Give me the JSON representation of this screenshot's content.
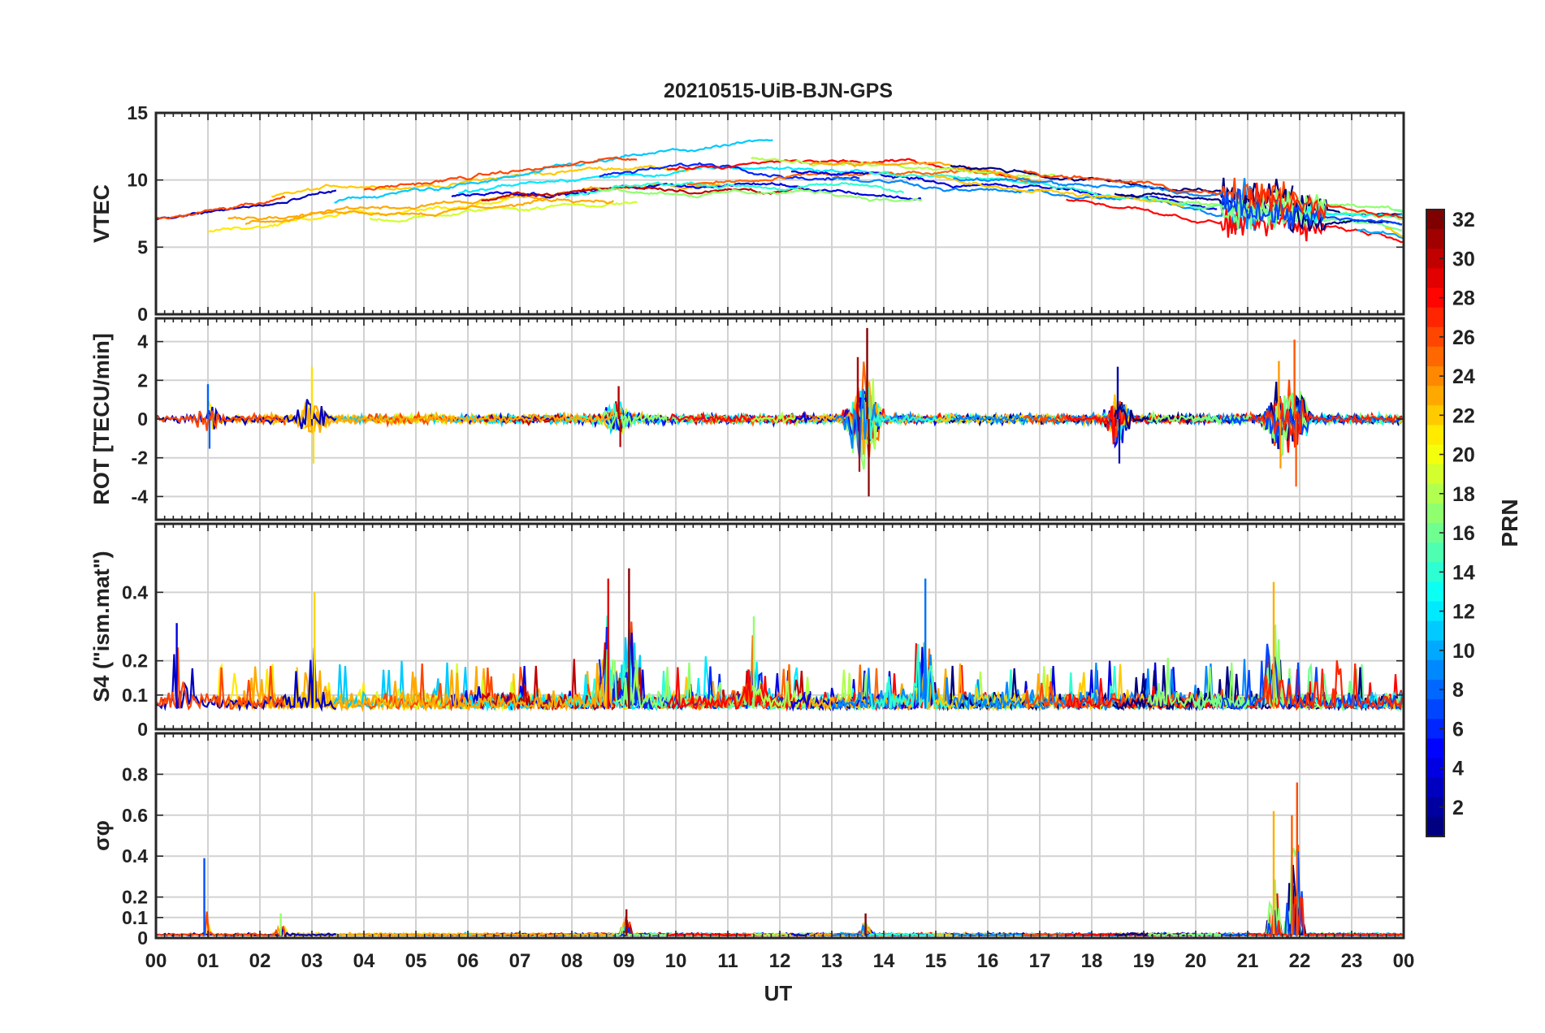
{
  "chart_data": {
    "type": "line",
    "title": "20210515-UiB-BJN-GPS",
    "xlabel": "UT",
    "x_tick_labels": [
      "00",
      "01",
      "02",
      "03",
      "04",
      "05",
      "06",
      "07",
      "08",
      "09",
      "10",
      "11",
      "12",
      "13",
      "14",
      "15",
      "16",
      "17",
      "18",
      "19",
      "20",
      "21",
      "22",
      "23",
      "00"
    ],
    "xlim": [
      0,
      24
    ],
    "grid": true,
    "panels": [
      {
        "ylabel": "VTEC",
        "ylim": [
          0,
          15
        ],
        "yticks": [
          0,
          5,
          10,
          15
        ],
        "series_note": "one trace per visible satellite, coloured by PRN",
        "bursts": [],
        "base": "vtec"
      },
      {
        "ylabel": "ROT [TECU/min]",
        "ylim": [
          -5.2,
          5.2
        ],
        "yticks": [
          -4,
          -2,
          0,
          2,
          4
        ],
        "bursts": [
          {
            "t": 1.0,
            "amp": 1.8
          },
          {
            "t": 3.0,
            "amp": 2.7
          },
          {
            "t": 8.9,
            "amp": 1.7
          },
          {
            "t": 13.5,
            "amp": 3.2
          },
          {
            "t": 13.68,
            "amp": 4.7
          },
          {
            "t": 18.5,
            "amp": 2.7
          },
          {
            "t": 21.6,
            "amp": 3.0
          },
          {
            "t": 21.9,
            "amp": 4.1
          }
        ],
        "base": "rot"
      },
      {
        "ylabel": "S4 (\"ism.mat\")",
        "ylim": [
          0,
          0.6
        ],
        "yticks": [
          0,
          0.1,
          0.2,
          0.4
        ],
        "bursts": [
          {
            "t": 0.4,
            "amp": 0.31
          },
          {
            "t": 3.05,
            "amp": 0.4
          },
          {
            "t": 8.7,
            "amp": 0.44
          },
          {
            "t": 9.1,
            "amp": 0.47
          },
          {
            "t": 11.5,
            "amp": 0.33
          },
          {
            "t": 14.8,
            "amp": 0.44
          },
          {
            "t": 21.5,
            "amp": 0.43
          }
        ],
        "base": "s4"
      },
      {
        "ylabel": "σφ",
        "ylim": [
          0,
          1.0
        ],
        "yticks": [
          0,
          0.1,
          0.2,
          0.4,
          0.6,
          0.8
        ],
        "bursts": [
          {
            "t": 0.93,
            "amp": 0.39
          },
          {
            "t": 2.4,
            "amp": 0.12
          },
          {
            "t": 9.05,
            "amp": 0.14
          },
          {
            "t": 13.65,
            "amp": 0.12
          },
          {
            "t": 21.5,
            "amp": 0.62
          },
          {
            "t": 21.85,
            "amp": 0.6
          },
          {
            "t": 21.95,
            "amp": 0.76
          }
        ],
        "base": "phi"
      }
    ],
    "colorbar": {
      "label": "PRN",
      "min": 1,
      "max": 32,
      "ticks": [
        2,
        4,
        6,
        8,
        10,
        12,
        14,
        16,
        18,
        20,
        22,
        24,
        26,
        28,
        30,
        32
      ],
      "colormap": "jet"
    }
  }
}
